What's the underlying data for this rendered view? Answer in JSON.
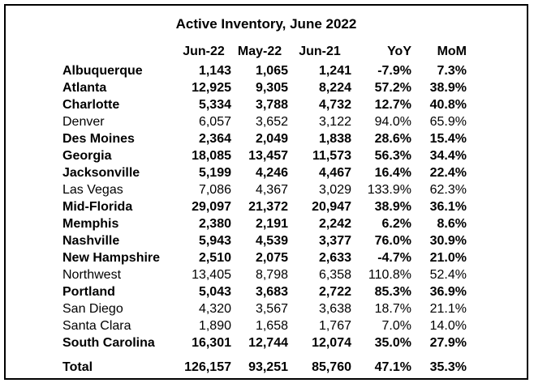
{
  "title": "Active Inventory, June 2022",
  "columns": [
    "Jun-22",
    "May-22",
    "Jun-21",
    "YoY",
    "MoM"
  ],
  "rows": [
    {
      "name": "Albuquerque",
      "bold": true,
      "values": [
        "1,143",
        "1,065",
        "1,241",
        "-7.9%",
        "7.3%"
      ]
    },
    {
      "name": "Atlanta",
      "bold": true,
      "values": [
        "12,925",
        "9,305",
        "8,224",
        "57.2%",
        "38.9%"
      ]
    },
    {
      "name": "Charlotte",
      "bold": true,
      "values": [
        "5,334",
        "3,788",
        "4,732",
        "12.7%",
        "40.8%"
      ]
    },
    {
      "name": "Denver",
      "bold": false,
      "values": [
        "6,057",
        "3,652",
        "3,122",
        "94.0%",
        "65.9%"
      ]
    },
    {
      "name": "Des Moines",
      "bold": true,
      "values": [
        "2,364",
        "2,049",
        "1,838",
        "28.6%",
        "15.4%"
      ]
    },
    {
      "name": "Georgia",
      "bold": true,
      "values": [
        "18,085",
        "13,457",
        "11,573",
        "56.3%",
        "34.4%"
      ]
    },
    {
      "name": "Jacksonville",
      "bold": true,
      "values": [
        "5,199",
        "4,246",
        "4,467",
        "16.4%",
        "22.4%"
      ]
    },
    {
      "name": "Las Vegas",
      "bold": false,
      "values": [
        "7,086",
        "4,367",
        "3,029",
        "133.9%",
        "62.3%"
      ]
    },
    {
      "name": "Mid-Florida",
      "bold": true,
      "values": [
        "29,097",
        "21,372",
        "20,947",
        "38.9%",
        "36.1%"
      ]
    },
    {
      "name": "Memphis",
      "bold": true,
      "values": [
        "2,380",
        "2,191",
        "2,242",
        "6.2%",
        "8.6%"
      ]
    },
    {
      "name": "Nashville",
      "bold": true,
      "values": [
        "5,943",
        "4,539",
        "3,377",
        "76.0%",
        "30.9%"
      ]
    },
    {
      "name": "New Hampshire",
      "bold": true,
      "values": [
        "2,510",
        "2,075",
        "2,633",
        "-4.7%",
        "21.0%"
      ]
    },
    {
      "name": "Northwest",
      "bold": false,
      "values": [
        "13,405",
        "8,798",
        "6,358",
        "110.8%",
        "52.4%"
      ]
    },
    {
      "name": "Portland",
      "bold": true,
      "values": [
        "5,043",
        "3,683",
        "2,722",
        "85.3%",
        "36.9%"
      ]
    },
    {
      "name": "San Diego",
      "bold": false,
      "values": [
        "4,320",
        "3,567",
        "3,638",
        "18.7%",
        "21.1%"
      ]
    },
    {
      "name": "Santa Clara",
      "bold": false,
      "values": [
        "1,890",
        "1,658",
        "1,767",
        "7.0%",
        "14.0%"
      ]
    },
    {
      "name": "South Carolina",
      "bold": true,
      "values": [
        "16,301",
        "12,744",
        "12,074",
        "35.0%",
        "27.9%"
      ]
    }
  ],
  "total": {
    "name": "Total",
    "values": [
      "126,157",
      "93,251",
      "85,760",
      "47.1%",
      "35.3%"
    ]
  }
}
